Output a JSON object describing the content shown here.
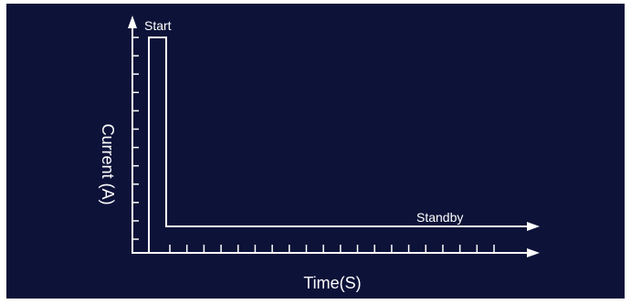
{
  "diagram": {
    "background_color": "#0c1238",
    "line_color": "#ffffff",
    "x_axis_label": "Time(S)",
    "y_axis_label": "Current (A)",
    "pulse_label": "Start",
    "baseline_label": "Standby",
    "x_tick_count": 20,
    "y_tick_count": 12
  }
}
